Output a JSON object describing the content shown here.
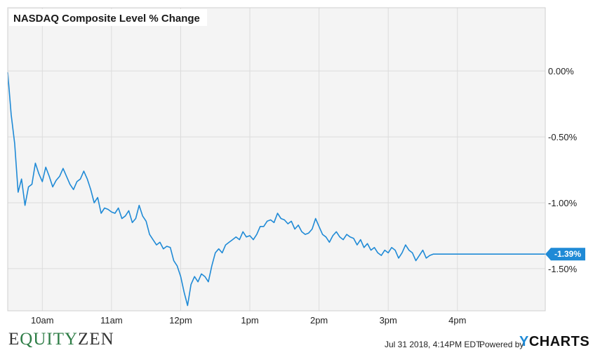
{
  "brand": {
    "prefix": "E",
    "mid": "QUITY",
    "suffix": "ZEN"
  },
  "footer": {
    "timestamp": "Jul 31 2018, 4:14PM EDT.",
    "powered_by": "Powered by",
    "ycharts_y": "Y",
    "ycharts_rest": "CHARTS"
  },
  "colors": {
    "line": "#1f8ad6",
    "brand_green": "#2e7d46"
  },
  "chart_data": {
    "type": "line",
    "title": "NASDAQ Composite Level % Change",
    "x_tick_labels": [
      "10am",
      "11am",
      "12pm",
      "1pm",
      "2pm",
      "3pm",
      "4pm"
    ],
    "y_tick_labels": [
      "0.00%",
      "-0.50%",
      "-1.00%",
      "-1.50%"
    ],
    "y_ticks": [
      0.0,
      -0.5,
      -1.0,
      -1.5
    ],
    "ylim": [
      -1.82,
      0.48
    ],
    "x_unit": "hours after 9:30am",
    "xlim": [
      0,
      7.77
    ],
    "last_value_label": "-1.39%",
    "series": [
      {
        "name": "",
        "x": [
          0.0,
          0.05,
          0.1,
          0.15,
          0.2,
          0.25,
          0.3,
          0.35,
          0.4,
          0.45,
          0.5,
          0.55,
          0.6,
          0.65,
          0.7,
          0.75,
          0.8,
          0.85,
          0.9,
          0.95,
          1.0,
          1.05,
          1.1,
          1.15,
          1.2,
          1.25,
          1.3,
          1.35,
          1.4,
          1.45,
          1.5,
          1.55,
          1.6,
          1.65,
          1.7,
          1.75,
          1.8,
          1.85,
          1.9,
          1.95,
          2.0,
          2.05,
          2.1,
          2.15,
          2.2,
          2.25,
          2.3,
          2.35,
          2.4,
          2.45,
          2.5,
          2.55,
          2.6,
          2.65,
          2.7,
          2.75,
          2.8,
          2.85,
          2.9,
          2.95,
          3.0,
          3.05,
          3.1,
          3.15,
          3.2,
          3.25,
          3.3,
          3.35,
          3.4,
          3.45,
          3.5,
          3.55,
          3.6,
          3.65,
          3.7,
          3.75,
          3.8,
          3.85,
          3.9,
          3.95,
          4.0,
          4.05,
          4.1,
          4.15,
          4.2,
          4.25,
          4.3,
          4.35,
          4.4,
          4.45,
          4.5,
          4.55,
          4.6,
          4.65,
          4.7,
          4.75,
          4.8,
          4.85,
          4.9,
          4.95,
          5.0,
          5.05,
          5.1,
          5.15,
          5.2,
          5.25,
          5.3,
          5.35,
          5.4,
          5.45,
          5.5,
          5.55,
          5.6,
          5.65,
          5.7,
          5.75,
          5.8,
          5.85,
          5.9,
          5.95,
          6.0,
          6.05,
          6.1,
          6.15,
          6.2,
          6.25,
          6.3,
          6.35,
          6.4,
          6.45,
          6.5,
          7.77
        ],
        "values": [
          -0.01,
          -0.33,
          -0.55,
          -0.92,
          -0.82,
          -1.02,
          -0.88,
          -0.86,
          -0.7,
          -0.78,
          -0.84,
          -0.73,
          -0.8,
          -0.88,
          -0.83,
          -0.8,
          -0.74,
          -0.8,
          -0.86,
          -0.9,
          -0.84,
          -0.82,
          -0.76,
          -0.82,
          -0.9,
          -1.0,
          -0.96,
          -1.08,
          -1.04,
          -1.05,
          -1.07,
          -1.08,
          -1.04,
          -1.12,
          -1.1,
          -1.06,
          -1.15,
          -1.12,
          -1.02,
          -1.1,
          -1.14,
          -1.24,
          -1.28,
          -1.32,
          -1.3,
          -1.35,
          -1.33,
          -1.34,
          -1.44,
          -1.48,
          -1.56,
          -1.68,
          -1.78,
          -1.62,
          -1.56,
          -1.6,
          -1.54,
          -1.56,
          -1.6,
          -1.48,
          -1.38,
          -1.35,
          -1.38,
          -1.32,
          -1.3,
          -1.28,
          -1.26,
          -1.28,
          -1.22,
          -1.26,
          -1.25,
          -1.28,
          -1.24,
          -1.18,
          -1.18,
          -1.14,
          -1.13,
          -1.15,
          -1.08,
          -1.12,
          -1.13,
          -1.16,
          -1.14,
          -1.2,
          -1.17,
          -1.22,
          -1.24,
          -1.23,
          -1.2,
          -1.12,
          -1.18,
          -1.24,
          -1.26,
          -1.3,
          -1.25,
          -1.22,
          -1.26,
          -1.28,
          -1.24,
          -1.26,
          -1.27,
          -1.32,
          -1.28,
          -1.34,
          -1.31,
          -1.36,
          -1.34,
          -1.38,
          -1.4,
          -1.36,
          -1.38,
          -1.34,
          -1.36,
          -1.42,
          -1.38,
          -1.32,
          -1.36,
          -1.38,
          -1.44,
          -1.4,
          -1.36,
          -1.42,
          -1.4,
          -1.39,
          -1.39,
          -1.39,
          -1.39,
          -1.39,
          -1.39,
          -1.39,
          -1.39,
          -1.39
        ]
      }
    ]
  }
}
